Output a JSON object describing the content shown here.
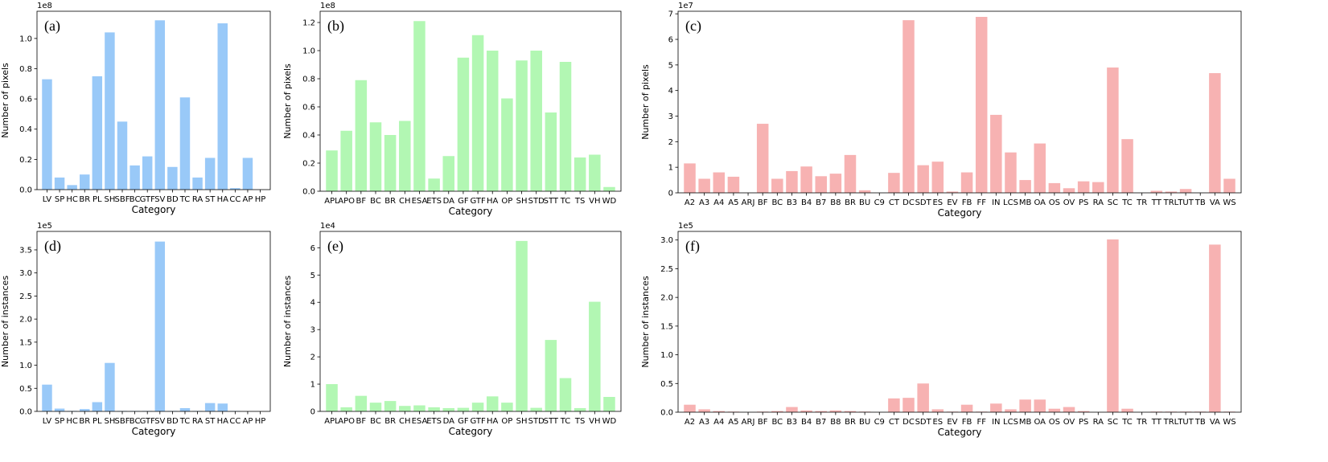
{
  "chart_data": [
    {
      "type": "bar",
      "panel_label": "(a)",
      "ylabel": "Number of pixels",
      "xlabel": "Category",
      "scale_label": "1e8",
      "scale": 100000000,
      "ylim": [
        0,
        1.18
      ],
      "yticks": [
        0.0,
        0.2,
        0.4,
        0.6,
        0.8,
        1.0
      ],
      "ytick_labels": [
        "0.0",
        "0.2",
        "0.4",
        "0.6",
        "0.8",
        "1.0"
      ],
      "color": "#99c9f8",
      "categories": [
        "LV",
        "SP",
        "HC",
        "BR",
        "PL",
        "SH",
        "SBF",
        "BC",
        "GTF",
        "SV",
        "BD",
        "TC",
        "RA",
        "ST",
        "HA",
        "CC",
        "AP",
        "HP"
      ],
      "values": [
        0.73,
        0.08,
        0.03,
        0.1,
        0.75,
        1.04,
        0.45,
        0.16,
        0.22,
        1.12,
        0.15,
        0.61,
        0.08,
        0.21,
        1.1,
        0.01,
        0.21,
        0.0
      ]
    },
    {
      "type": "bar",
      "panel_label": "(b)",
      "ylabel": "Number of pixels",
      "xlabel": "Category",
      "scale_label": "1e8",
      "scale": 100000000,
      "ylim": [
        0,
        1.28
      ],
      "yticks": [
        0.0,
        0.2,
        0.4,
        0.6,
        0.8,
        1.0,
        1.2
      ],
      "ytick_labels": [
        "0.0",
        "0.2",
        "0.4",
        "0.6",
        "0.8",
        "1.0",
        "1.2"
      ],
      "color": "#b2f7b3",
      "categories": [
        "APL",
        "APO",
        "BF",
        "BC",
        "BR",
        "CH",
        "ESA",
        "ETS",
        "DA",
        "GF",
        "GTF",
        "HA",
        "OP",
        "SH",
        "STD",
        "STT",
        "TC",
        "TS",
        "VH",
        "WD"
      ],
      "values": [
        0.29,
        0.43,
        0.79,
        0.49,
        0.4,
        0.5,
        1.21,
        0.09,
        0.25,
        0.95,
        1.11,
        1.0,
        0.66,
        0.93,
        1.0,
        0.56,
        0.92,
        0.24,
        0.26,
        0.03
      ]
    },
    {
      "type": "bar",
      "panel_label": "(c)",
      "ylabel": "Number of pixels",
      "xlabel": "Category",
      "scale_label": "1e7",
      "scale": 10000000,
      "ylim": [
        0,
        7.1
      ],
      "yticks": [
        0,
        1,
        2,
        3,
        4,
        5,
        6,
        7
      ],
      "ytick_labels": [
        "0",
        "1",
        "2",
        "3",
        "4",
        "5",
        "6",
        "7"
      ],
      "color": "#f7b2b2",
      "categories": [
        "A2",
        "A3",
        "A4",
        "A5",
        "ARJ",
        "BF",
        "BC",
        "B3",
        "B4",
        "B7",
        "B8",
        "BR",
        "BU",
        "C9",
        "CT",
        "DC",
        "SDT",
        "ES",
        "EV",
        "FB",
        "FF",
        "IN",
        "LCS",
        "MB",
        "OA",
        "OS",
        "OV",
        "PS",
        "RA",
        "SC",
        "TC",
        "TR",
        "TT",
        "TRL",
        "TUT",
        "TB",
        "VA",
        "WS"
      ],
      "values": [
        1.15,
        0.55,
        0.8,
        0.63,
        0.0,
        2.7,
        0.55,
        0.85,
        1.03,
        0.65,
        0.75,
        1.48,
        0.1,
        0.0,
        0.78,
        6.75,
        1.08,
        1.22,
        0.05,
        0.8,
        6.88,
        3.05,
        1.58,
        0.5,
        1.93,
        0.38,
        0.18,
        0.45,
        0.42,
        4.9,
        2.1,
        0.0,
        0.08,
        0.05,
        0.15,
        0.0,
        4.68,
        0.55
      ]
    },
    {
      "type": "bar",
      "panel_label": "(d)",
      "ylabel": "Number of instances",
      "xlabel": "Category",
      "scale_label": "1e5",
      "scale": 100000,
      "ylim": [
        0,
        3.9
      ],
      "yticks": [
        0.0,
        0.5,
        1.0,
        1.5,
        2.0,
        2.5,
        3.0,
        3.5
      ],
      "ytick_labels": [
        "0.0",
        "0.5",
        "1.0",
        "1.5",
        "2.0",
        "2.5",
        "3.0",
        "3.5"
      ],
      "color": "#99c9f8",
      "categories": [
        "LV",
        "SP",
        "HC",
        "BR",
        "PL",
        "SH",
        "SBF",
        "BC",
        "GTF",
        "SV",
        "BD",
        "TC",
        "RA",
        "ST",
        "HA",
        "CC",
        "AP",
        "HP"
      ],
      "values": [
        0.58,
        0.06,
        0.01,
        0.05,
        0.2,
        1.05,
        0.01,
        0.01,
        0.01,
        3.68,
        0.01,
        0.07,
        0.01,
        0.18,
        0.17,
        0.01,
        0.0,
        0.0
      ]
    },
    {
      "type": "bar",
      "panel_label": "(e)",
      "ylabel": "Number of instances",
      "xlabel": "Category",
      "scale_label": "1e4",
      "scale": 10000,
      "ylim": [
        0,
        6.6
      ],
      "yticks": [
        0,
        1,
        2,
        3,
        4,
        5,
        6
      ],
      "ytick_labels": [
        "0",
        "1",
        "2",
        "3",
        "4",
        "5",
        "6"
      ],
      "color": "#b2f7b3",
      "categories": [
        "APL",
        "APO",
        "BF",
        "BC",
        "BR",
        "CH",
        "ESA",
        "ETS",
        "DA",
        "GF",
        "GTF",
        "HA",
        "OP",
        "SH",
        "STD",
        "STT",
        "TC",
        "TS",
        "VH",
        "WD"
      ],
      "values": [
        1.0,
        0.15,
        0.57,
        0.32,
        0.38,
        0.2,
        0.22,
        0.15,
        0.12,
        0.13,
        0.32,
        0.55,
        0.32,
        6.25,
        0.13,
        2.62,
        1.22,
        0.12,
        4.02,
        0.53
      ]
    },
    {
      "type": "bar",
      "panel_label": "(f)",
      "ylabel": "Number of instances",
      "xlabel": "Category",
      "scale_label": "1e5",
      "scale": 100000,
      "ylim": [
        0,
        3.15
      ],
      "yticks": [
        0.0,
        0.5,
        1.0,
        1.5,
        2.0,
        2.5,
        3.0
      ],
      "ytick_labels": [
        "0.0",
        "0.5",
        "1.0",
        "1.5",
        "2.0",
        "2.5",
        "3.0"
      ],
      "color": "#f7b2b2",
      "categories": [
        "A2",
        "A3",
        "A4",
        "A5",
        "ARJ",
        "BF",
        "BC",
        "B3",
        "B4",
        "B7",
        "B8",
        "BR",
        "BU",
        "C9",
        "CT",
        "DC",
        "SDT",
        "ES",
        "EV",
        "FB",
        "FF",
        "IN",
        "LCS",
        "MB",
        "OA",
        "OS",
        "OV",
        "PS",
        "RA",
        "SC",
        "TC",
        "TR",
        "TT",
        "TRL",
        "TUT",
        "TB",
        "VA",
        "WS"
      ],
      "values": [
        0.13,
        0.05,
        0.02,
        0.01,
        0.0,
        0.01,
        0.02,
        0.09,
        0.03,
        0.02,
        0.03,
        0.02,
        0.01,
        0.0,
        0.24,
        0.25,
        0.5,
        0.05,
        0.01,
        0.13,
        0.01,
        0.15,
        0.05,
        0.22,
        0.22,
        0.06,
        0.09,
        0.02,
        0.0,
        3.01,
        0.06,
        0.0,
        0.01,
        0.01,
        0.01,
        0.01,
        2.92,
        0.01
      ]
    }
  ]
}
